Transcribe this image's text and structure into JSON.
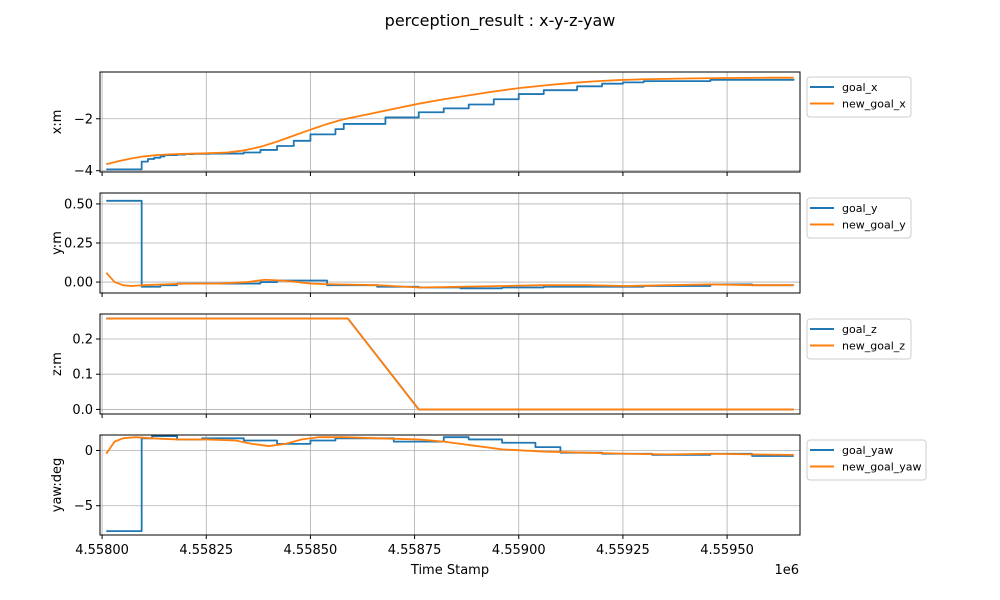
{
  "figure": {
    "title": "perception_result : x-y-z-yaw",
    "xlabel": "Time Stamp",
    "x_offset_label": "1e6"
  },
  "colors": {
    "series_1": "#1f77b4",
    "series_2": "#ff7f0e",
    "grid": "#b0b0b0",
    "axes": "#000000"
  },
  "chart_data": [
    {
      "type": "line",
      "ylabel": "x:m",
      "xlim": [
        4.557995,
        4.559675
      ],
      "ylim": [
        -4.05,
        -0.2
      ],
      "yticks": [
        -4,
        -2
      ],
      "ytick_labels": [
        "−4",
        "−2"
      ],
      "grid": true,
      "legend": "outside-right-top",
      "series": [
        {
          "name": "goal_x",
          "color": "#1f77b4",
          "drawstyle": "steps-post",
          "x": [
            4.55801,
            4.55809,
            4.558095,
            4.55811,
            4.558125,
            4.55814,
            4.55815,
            4.55818,
            4.5582,
            4.55822,
            4.55826,
            4.55834,
            4.55838,
            4.55842,
            4.55846,
            4.5585,
            4.55856,
            4.55858,
            4.55868,
            4.55876,
            4.55882,
            4.55888,
            4.55894,
            4.559,
            4.55906,
            4.55914,
            4.5592,
            4.55925,
            4.5593,
            4.55946,
            4.55966
          ],
          "y": [
            -3.95,
            -3.95,
            -3.65,
            -3.55,
            -3.5,
            -3.45,
            -3.4,
            -3.38,
            -3.36,
            -3.35,
            -3.34,
            -3.3,
            -3.2,
            -3.05,
            -2.85,
            -2.6,
            -2.4,
            -2.2,
            -1.95,
            -1.75,
            -1.6,
            -1.45,
            -1.25,
            -1.05,
            -0.9,
            -0.75,
            -0.65,
            -0.6,
            -0.55,
            -0.5,
            -0.48
          ]
        },
        {
          "name": "new_goal_x",
          "color": "#ff7f0e",
          "drawstyle": "default",
          "x": [
            4.55801,
            4.55804,
            4.55807,
            4.5581,
            4.55813,
            4.55816,
            4.5582,
            4.55825,
            4.5583,
            4.55834,
            4.55838,
            4.55842,
            4.55846,
            4.5585,
            4.55854,
            4.55858,
            4.55864,
            4.5587,
            4.55876,
            4.55882,
            4.55888,
            4.55894,
            4.559,
            4.55906,
            4.55912,
            4.55918,
            4.55924,
            4.5593,
            4.5594,
            4.5595,
            4.5596,
            4.55966
          ],
          "y": [
            -3.75,
            -3.63,
            -3.53,
            -3.45,
            -3.4,
            -3.37,
            -3.35,
            -3.33,
            -3.3,
            -3.22,
            -3.08,
            -2.88,
            -2.65,
            -2.42,
            -2.2,
            -2.02,
            -1.82,
            -1.62,
            -1.42,
            -1.25,
            -1.1,
            -0.95,
            -0.82,
            -0.72,
            -0.63,
            -0.56,
            -0.51,
            -0.48,
            -0.45,
            -0.43,
            -0.42,
            -0.42
          ]
        }
      ]
    },
    {
      "type": "line",
      "ylabel": "y:m",
      "xlim": [
        4.557995,
        4.559675
      ],
      "ylim": [
        -0.07,
        0.57
      ],
      "yticks": [
        0.0,
        0.25,
        0.5
      ],
      "ytick_labels": [
        "0.00",
        "0.25",
        "0.50"
      ],
      "grid": true,
      "legend": "outside-right-top",
      "series": [
        {
          "name": "goal_y",
          "color": "#1f77b4",
          "drawstyle": "steps-post",
          "x": [
            4.55801,
            4.55809,
            4.558095,
            4.55814,
            4.55818,
            4.55822,
            4.55826,
            4.5583,
            4.55834,
            4.55838,
            4.55842,
            4.55846,
            4.5585,
            4.55854,
            4.55866,
            4.55876,
            4.55886,
            4.55896,
            4.55906,
            4.55916,
            4.5593,
            4.55946,
            4.55956,
            4.55966
          ],
          "y": [
            0.52,
            0.52,
            -0.03,
            -0.02,
            -0.01,
            -0.01,
            -0.01,
            -0.01,
            -0.01,
            0.0,
            0.01,
            0.01,
            0.01,
            -0.02,
            -0.03,
            -0.035,
            -0.04,
            -0.035,
            -0.03,
            -0.03,
            -0.025,
            -0.015,
            -0.02,
            -0.02
          ]
        },
        {
          "name": "new_goal_y",
          "color": "#ff7f0e",
          "drawstyle": "default",
          "x": [
            4.55801,
            4.55803,
            4.55805,
            4.55807,
            4.5581,
            4.55815,
            4.5582,
            4.55828,
            4.55835,
            4.55839,
            4.55843,
            4.55847,
            4.5585,
            4.55856,
            4.55866,
            4.55876,
            4.55886,
            4.55896,
            4.55906,
            4.55916,
            4.55926,
            4.55936,
            4.55946,
            4.55956,
            4.55966
          ],
          "y": [
            0.06,
            0.0,
            -0.02,
            -0.025,
            -0.02,
            -0.015,
            -0.01,
            -0.01,
            0.0,
            0.015,
            0.01,
            0.0,
            -0.01,
            -0.015,
            -0.02,
            -0.035,
            -0.03,
            -0.025,
            -0.02,
            -0.02,
            -0.025,
            -0.02,
            -0.015,
            -0.02,
            -0.02
          ]
        }
      ]
    },
    {
      "type": "line",
      "ylabel": "z:m",
      "xlim": [
        4.557995,
        4.559675
      ],
      "ylim": [
        -0.013,
        0.271
      ],
      "yticks": [
        0.0,
        0.1,
        0.2
      ],
      "ytick_labels": [
        "0.0",
        "0.1",
        "0.2"
      ],
      "grid": true,
      "legend": "outside-right-top",
      "series": [
        {
          "name": "goal_z",
          "color": "#1f77b4",
          "drawstyle": "default",
          "x": [
            4.55801,
            4.55859,
            4.55876,
            4.55966
          ],
          "y": [
            0.258,
            0.258,
            0.0,
            0.0
          ]
        },
        {
          "name": "new_goal_z",
          "color": "#ff7f0e",
          "drawstyle": "default",
          "x": [
            4.55801,
            4.55859,
            4.55876,
            4.55966
          ],
          "y": [
            0.258,
            0.258,
            0.0,
            0.0
          ]
        }
      ]
    },
    {
      "type": "line",
      "ylabel": "yaw:deg",
      "xlim": [
        4.557995,
        4.559675
      ],
      "ylim": [
        -7.65,
        1.4
      ],
      "yticks": [
        -5,
        0
      ],
      "ytick_labels": [
        "−5",
        "0"
      ],
      "grid": true,
      "legend": "outside-right-top",
      "series": [
        {
          "name": "goal_yaw",
          "color": "#1f77b4",
          "drawstyle": "steps-post",
          "x": [
            4.55801,
            4.55809,
            4.558095,
            4.55812,
            4.55818,
            4.55824,
            4.55834,
            4.55842,
            4.55846,
            4.5585,
            4.55856,
            4.5587,
            4.55882,
            4.55888,
            4.55896,
            4.55904,
            4.5591,
            4.5592,
            4.55932,
            4.55946,
            4.55956,
            4.55966
          ],
          "y": [
            -7.3,
            -7.3,
            1.1,
            1.3,
            1.0,
            1.1,
            0.9,
            0.6,
            0.6,
            0.9,
            1.1,
            0.8,
            1.2,
            1.0,
            0.7,
            0.3,
            -0.2,
            -0.3,
            -0.4,
            -0.3,
            -0.5,
            -0.5
          ]
        },
        {
          "name": "new_goal_yaw",
          "color": "#ff7f0e",
          "drawstyle": "default",
          "x": [
            4.55801,
            4.55803,
            4.55805,
            4.55808,
            4.55812,
            4.55818,
            4.55825,
            4.55832,
            4.55836,
            4.5584,
            4.55844,
            4.55848,
            4.55852,
            4.55858,
            4.55866,
            4.55876,
            4.55882,
            4.55888,
            4.55896,
            4.55906,
            4.55916,
            4.55926,
            4.55936,
            4.55946,
            4.55956,
            4.55966
          ],
          "y": [
            -0.3,
            0.8,
            1.1,
            1.2,
            1.1,
            1.0,
            1.0,
            0.9,
            0.6,
            0.4,
            0.6,
            1.0,
            1.2,
            1.2,
            1.1,
            1.0,
            0.8,
            0.5,
            0.1,
            -0.1,
            -0.2,
            -0.3,
            -0.35,
            -0.3,
            -0.35,
            -0.4
          ]
        }
      ]
    }
  ],
  "shared_xticks": [
    4.558,
    4.55825,
    4.5585,
    4.55875,
    4.559,
    4.55925,
    4.5595
  ],
  "shared_xtick_labels": [
    "4.55800",
    "4.55825",
    "4.55850",
    "4.55875",
    "4.55900",
    "4.55925",
    "4.55950"
  ]
}
